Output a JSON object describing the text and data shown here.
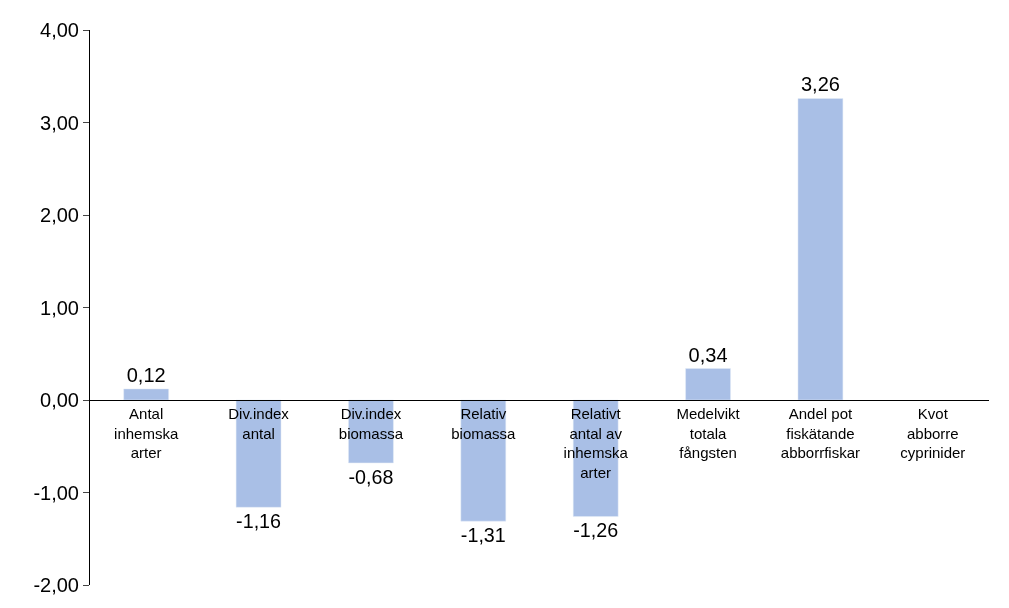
{
  "chart_data": {
    "type": "bar",
    "categories": [
      "Antal inhemska arter",
      "Div.index antal",
      "Div.index biomassa",
      "Relativ biomassa",
      "Relativt antal av inhemska arter",
      "Medelvikt totala fångsten",
      "Andel pot fiskätande abborrfiskar",
      "Kvot abborre cyprinider"
    ],
    "values": [
      0.12,
      -1.16,
      -0.68,
      -1.31,
      -1.26,
      0.34,
      3.26,
      null
    ],
    "value_labels": [
      "0,12",
      "-1,16",
      "-0,68",
      "-1,31",
      "-1,26",
      "0,34",
      "3,26",
      null
    ],
    "color": "#a9bfe6",
    "ylim": [
      -2,
      4
    ],
    "yticks": [
      {
        "value": -2,
        "label": "-2,00"
      },
      {
        "value": -1,
        "label": "-1,00"
      },
      {
        "value": 0,
        "label": "0,00"
      },
      {
        "value": 1,
        "label": "1,00"
      },
      {
        "value": 2,
        "label": "2,00"
      },
      {
        "value": 3,
        "label": "3,00"
      },
      {
        "value": 4,
        "label": "4,00"
      }
    ]
  }
}
